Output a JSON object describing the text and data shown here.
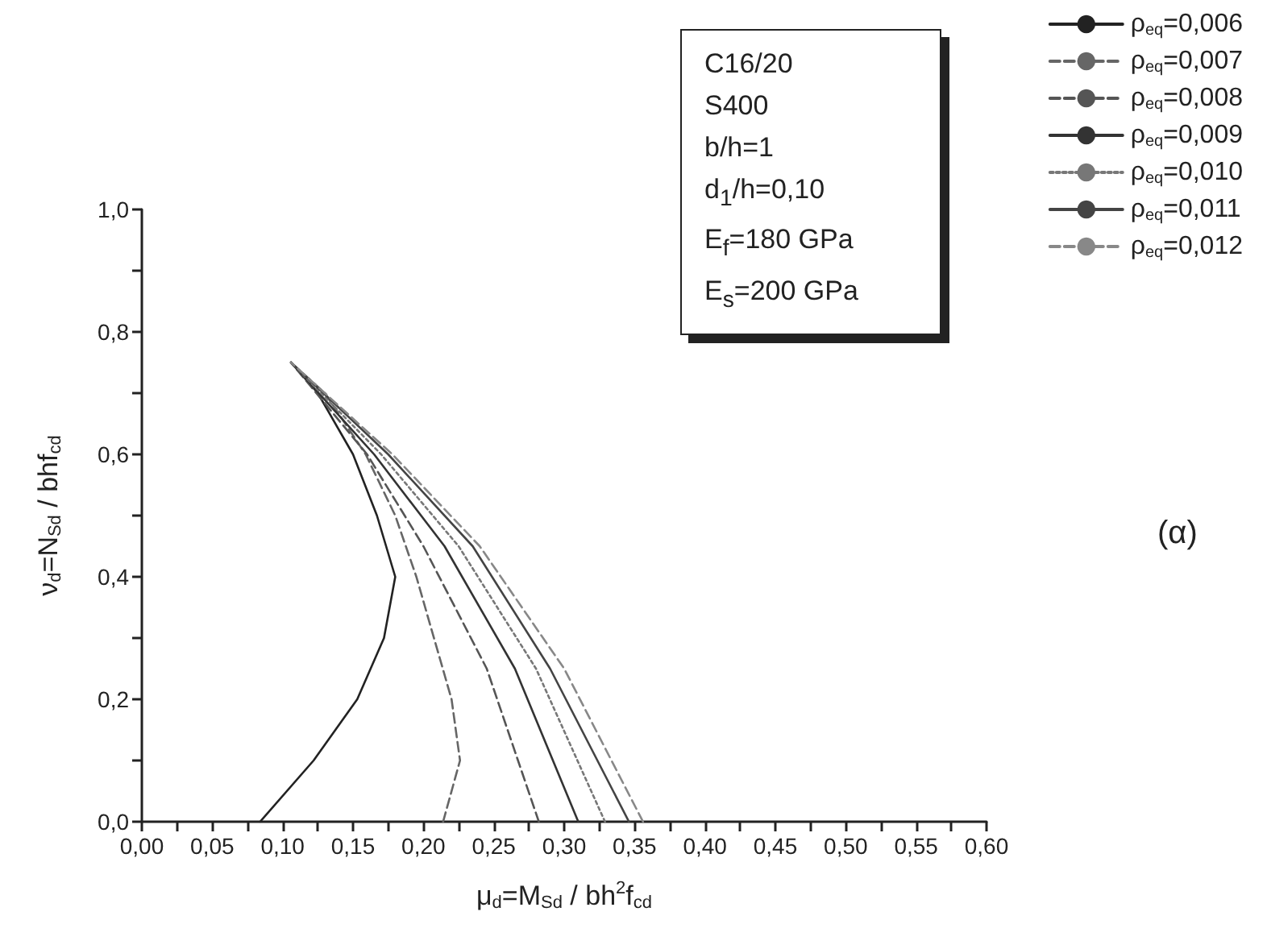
{
  "chart_data": {
    "type": "line",
    "xlabel": "μ$_{d}$=M$_{Sd}$ / bh$^{2}$f$_{cd}$",
    "ylabel": "ν$_{d}$=N$_{Sd}$ / bhf$_{cd}$",
    "xlim": [
      0,
      0.6
    ],
    "xticks": [
      {
        "value": 0,
        "label": "0,00"
      },
      {
        "value": 0.05,
        "label": "0,05"
      },
      {
        "value": 0.1,
        "label": "0,10"
      },
      {
        "value": 0.15,
        "label": "0,15"
      },
      {
        "value": 0.2,
        "label": "0,20"
      },
      {
        "value": 0.25,
        "label": "0,25"
      },
      {
        "value": 0.3,
        "label": "0,30"
      },
      {
        "value": 0.35,
        "label": "0,35"
      },
      {
        "value": 0.4,
        "label": "0,40"
      },
      {
        "value": 0.45,
        "label": "0,45"
      },
      {
        "value": 0.5,
        "label": "0,50"
      },
      {
        "value": 0.55,
        "label": "0,55"
      },
      {
        "value": 0.6,
        "label": "0,60"
      }
    ],
    "ylim": [
      0,
      1
    ],
    "yticks": [
      {
        "value": 0,
        "label": "0,0"
      },
      {
        "value": 0.2,
        "label": "0,2"
      },
      {
        "value": 0.4,
        "label": "0,4"
      },
      {
        "value": 0.6,
        "label": "0,6"
      },
      {
        "value": 0.8,
        "label": "0,8"
      },
      {
        "value": 1,
        "label": "1,0"
      }
    ],
    "grid": false,
    "legend": "top right",
    "marker": "none",
    "annotations": [
      "C16/20",
      "S400",
      "b/h=1",
      "d$_{1}$/h=0,10",
      "E$_{f}$=180 GPa",
      "E$_{s}$=200 GPa",
      "(α)"
    ],
    "series": [
      {
        "name": "ρ$_{eq}$=0,006",
        "color": "#222222",
        "line_style": "solid",
        "x": [
          0.084,
          0.122,
          0.153,
          0.172,
          0.18,
          0.167,
          0.15,
          0.125,
          0.106
        ],
        "values": [
          0,
          0.1,
          0.2,
          0.3,
          0.4,
          0.5,
          0.6,
          0.7,
          0.75
        ]
      },
      {
        "name": "ρ$_{eq}$=0,007",
        "color": "#666666",
        "line_style": "dashed",
        "x": [
          0.214,
          0.226,
          0.22,
          0.195,
          0.18,
          0.159,
          0.13,
          0.106
        ],
        "values": [
          0,
          0.1,
          0.2,
          0.4,
          0.5,
          0.6,
          0.7,
          0.75
        ]
      },
      {
        "name": "ρ$_{eq}$=0,008",
        "color": "#555555",
        "line_style": "dashed",
        "x": [
          0.282,
          0.245,
          0.2,
          0.16,
          0.106
        ],
        "values": [
          0,
          0.25,
          0.45,
          0.6,
          0.75
        ]
      },
      {
        "name": "ρ$_{eq}$=0,009",
        "color": "#333333",
        "line_style": "solid",
        "x": [
          0.31,
          0.265,
          0.215,
          0.165,
          0.106
        ],
        "values": [
          0,
          0.25,
          0.45,
          0.6,
          0.75
        ]
      },
      {
        "name": "ρ$_{eq}$=0,010",
        "color": "#777777",
        "line_style": "dotted",
        "x": [
          0.329,
          0.28,
          0.225,
          0.17,
          0.106
        ],
        "values": [
          0,
          0.25,
          0.45,
          0.6,
          0.75
        ]
      },
      {
        "name": "ρ$_{eq}$=0,011",
        "color": "#444444",
        "line_style": "solid",
        "x": [
          0.346,
          0.29,
          0.235,
          0.175,
          0.106
        ],
        "values": [
          0,
          0.25,
          0.45,
          0.6,
          0.75
        ]
      },
      {
        "name": "ρ$_{eq}$=0,012",
        "color": "#888888",
        "line_style": "dashed",
        "x": [
          0.356,
          0.3,
          0.24,
          0.178,
          0.106
        ],
        "values": [
          0,
          0.25,
          0.45,
          0.6,
          0.75
        ]
      }
    ]
  }
}
